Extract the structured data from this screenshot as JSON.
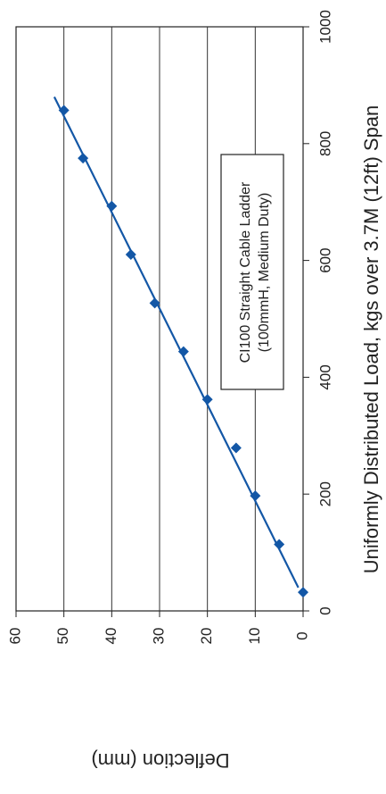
{
  "chart_data": {
    "type": "scatter",
    "orientation": "rotated-90-ccw",
    "xlabel": "Uniformly Distributed Load, kgs over 3.7M (12ft) Span",
    "ylabel": "Deflection (mm)",
    "xlim": [
      0,
      1000
    ],
    "ylim": [
      0,
      60
    ],
    "x_ticks": [
      "0",
      "200",
      "400",
      "600",
      "800",
      "1000"
    ],
    "y_ticks": [
      "0",
      "10",
      "20",
      "30",
      "40",
      "50",
      "60"
    ],
    "grid": "horizontal-major",
    "annotation": {
      "line1": "CI100 Straight Cable Ladder",
      "line2": "(100mmH, Medium Duty)"
    },
    "series": [
      {
        "marker": "diamond",
        "color": "#1357a6",
        "x": [
          32,
          114,
          197,
          279,
          362,
          444,
          527,
          610,
          693,
          775,
          857
        ],
        "y": [
          0,
          5,
          10,
          14,
          20,
          25,
          31,
          36,
          40,
          46,
          50
        ]
      }
    ],
    "trendline": {
      "color": "#1357a6",
      "x": [
        40,
        880
      ],
      "y": [
        1,
        52
      ]
    }
  }
}
